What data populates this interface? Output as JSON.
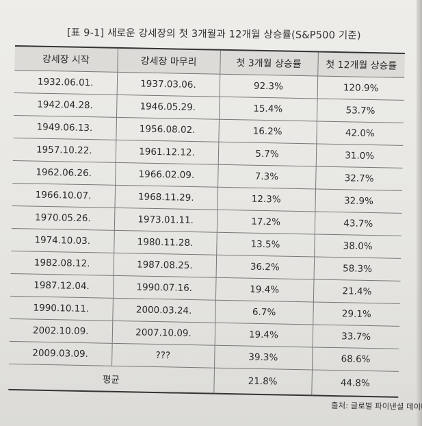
{
  "caption": "[표 9-1] 새로운 강세장의 첫 3개월과 12개월 상승률(S&P500 기준)",
  "headers": [
    "강세장 시작",
    "강세장 마무리",
    "첫 3개월 상승률",
    "첫 12개월 상승률"
  ],
  "rows": [
    [
      "1932.06.01.",
      "1937.03.06.",
      "92.3%",
      "120.9%"
    ],
    [
      "1942.04.28.",
      "1946.05.29.",
      "15.4%",
      "53.7%"
    ],
    [
      "1949.06.13.",
      "1956.08.02.",
      "16.2%",
      "42.0%"
    ],
    [
      "1957.10.22.",
      "1961.12.12.",
      "5.7%",
      "31.0%"
    ],
    [
      "1962.06.26.",
      "1966.02.09.",
      "7.3%",
      "32.7%"
    ],
    [
      "1966.10.07.",
      "1968.11.29.",
      "12.3%",
      "32.9%"
    ],
    [
      "1970.05.26.",
      "1973.01.11.",
      "17.2%",
      "43.7%"
    ],
    [
      "1974.10.03.",
      "1980.11.28.",
      "13.5%",
      "38.0%"
    ],
    [
      "1982.08.12.",
      "1987.08.25.",
      "36.2%",
      "58.3%"
    ],
    [
      "1987.12.04.",
      "1990.07.16.",
      "19.4%",
      "21.4%"
    ],
    [
      "1990.10.11.",
      "2000.03.24.",
      "6.7%",
      "29.1%"
    ],
    [
      "2002.10.09.",
      "2007.10.09.",
      "19.4%",
      "33.7%"
    ],
    [
      "2009.03.09.",
      "???",
      "39.3%",
      "68.6%"
    ]
  ],
  "average": {
    "label": "평균",
    "three_month": "21.8%",
    "twelve_month": "44.8%"
  },
  "source": "출처: 글로벌 파이낸셜 데이터"
}
